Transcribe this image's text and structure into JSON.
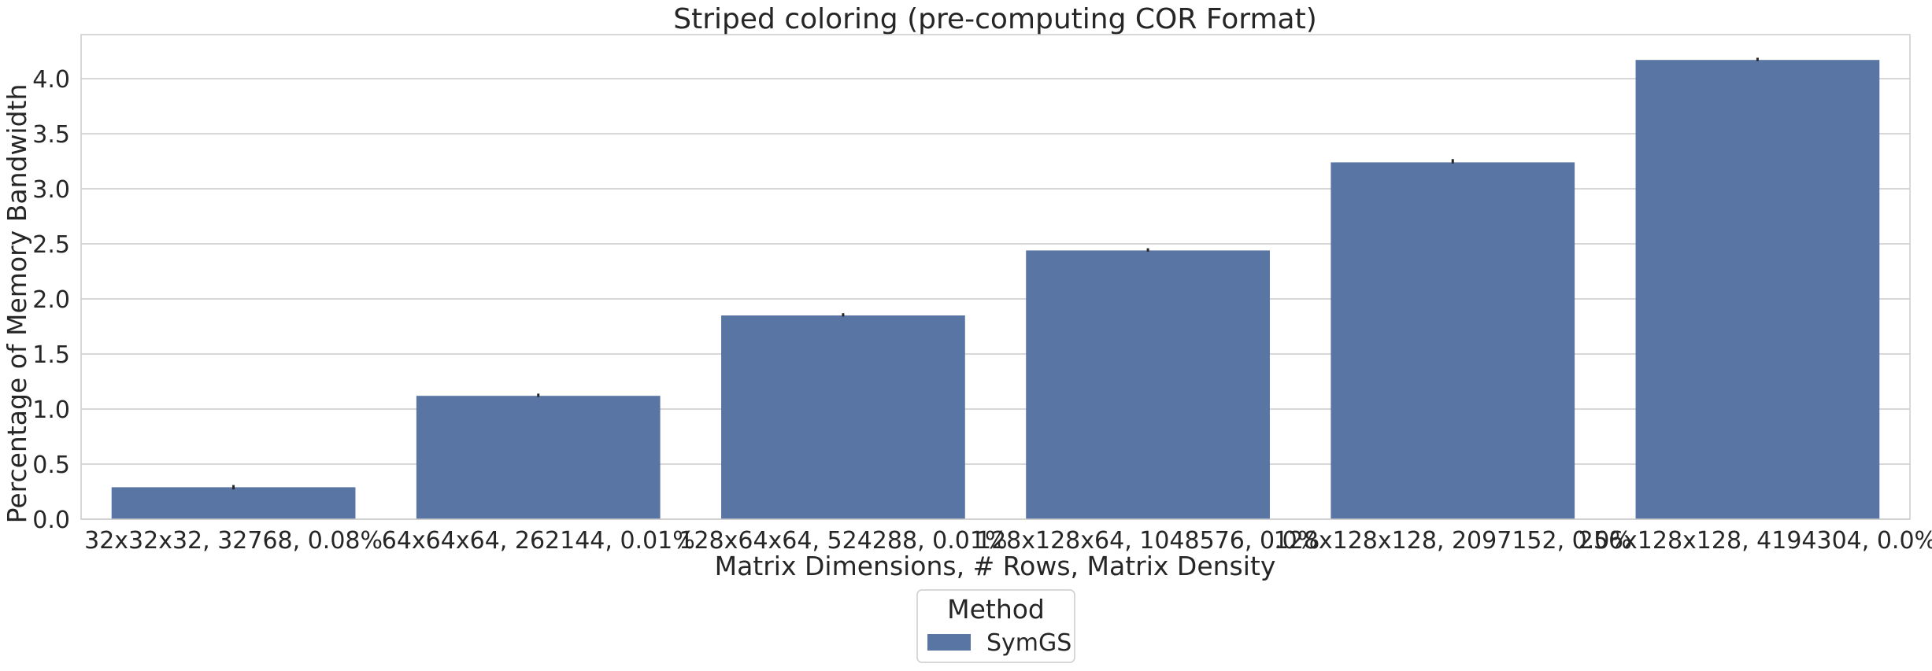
{
  "chart_data": {
    "type": "bar",
    "title": "Striped coloring (pre-computing COR Format)",
    "xlabel": "Matrix Dimensions, # Rows, Matrix Density",
    "ylabel": "Percentage of Memory Bandwidth",
    "categories": [
      "32x32x32, 32768, 0.08%",
      "64x64x64, 262144, 0.01%",
      "128x64x64, 524288, 0.01%",
      "128x128x64, 1048576, 0.0%",
      "128x128x128, 2097152, 0.0%",
      "256x128x128, 4194304, 0.0%"
    ],
    "series": [
      {
        "name": "SymGS",
        "values": [
          0.29,
          1.12,
          1.85,
          2.44,
          3.24,
          4.17
        ],
        "error_low": [
          0.27,
          1.11,
          1.84,
          2.43,
          3.23,
          4.16
        ],
        "error_high": [
          0.31,
          1.14,
          1.87,
          2.46,
          3.27,
          4.19
        ],
        "color": "#5975a4"
      }
    ],
    "ylim": [
      0,
      4.4
    ],
    "yticks": [
      0.0,
      0.5,
      1.0,
      1.5,
      2.0,
      2.5,
      3.0,
      3.5,
      4.0
    ],
    "ytick_labels": [
      "0.0",
      "0.5",
      "1.0",
      "1.5",
      "2.0",
      "2.5",
      "3.0",
      "3.5",
      "4.0"
    ],
    "grid": true,
    "legend": {
      "title": "Method",
      "placement": "bottom-center"
    }
  }
}
